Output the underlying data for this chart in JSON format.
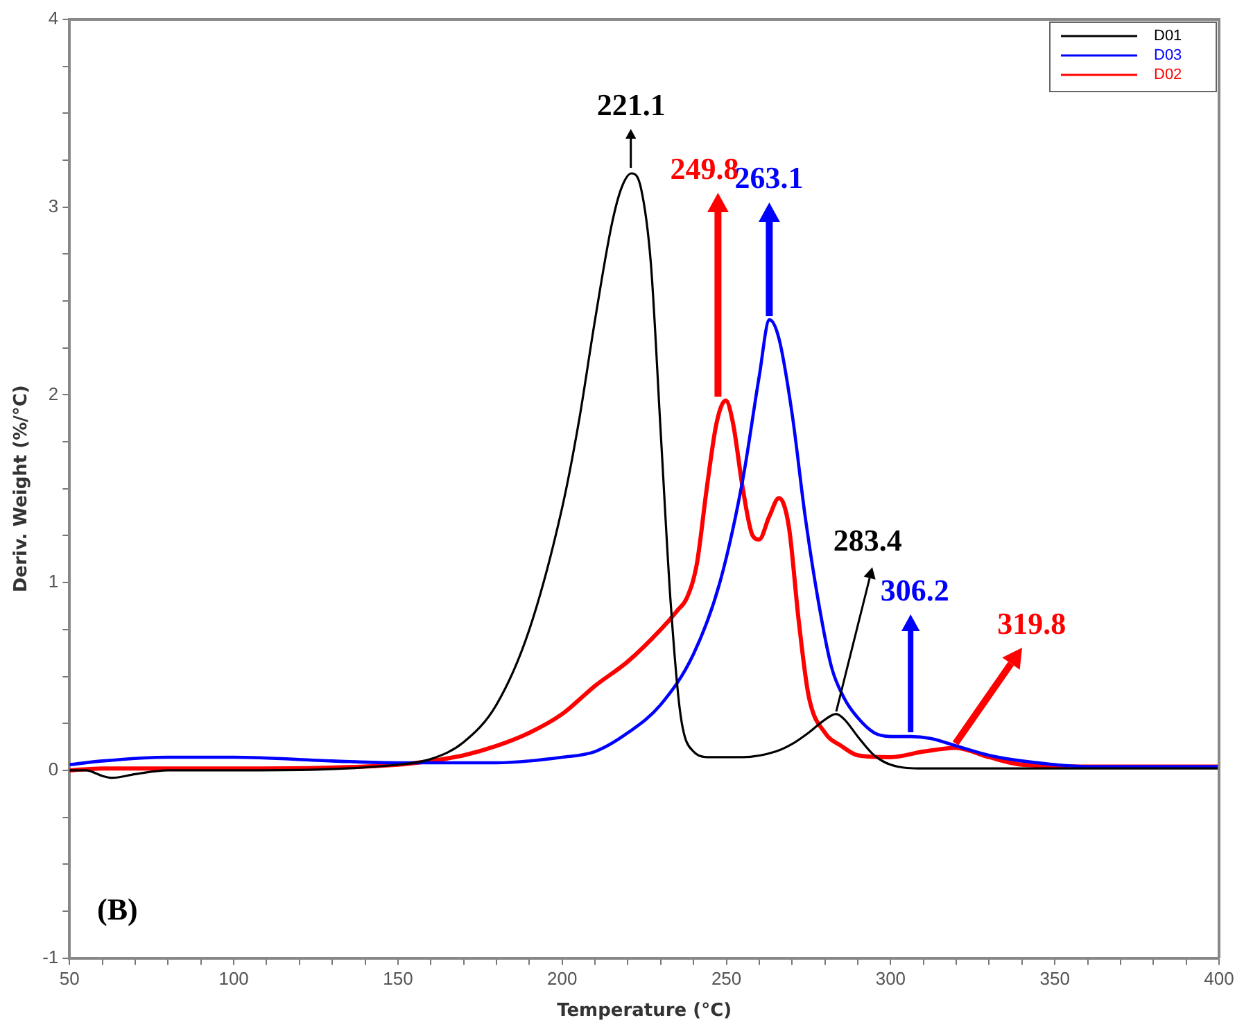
{
  "chart_data": {
    "type": "line",
    "xlabel": "Temperature (°C)",
    "ylabel": "Deriv. Weight (%/°C)",
    "xlim": [
      50,
      400
    ],
    "xticks": [
      50,
      {
        "value": 60,
        "label": null
      },
      {
        "value": 70,
        "label": null
      },
      {
        "value": 80,
        "label": null
      },
      {
        "value": 90,
        "label": null
      },
      100,
      {
        "value": 110,
        "label": null
      },
      {
        "value": 120,
        "label": null
      },
      {
        "value": 130,
        "label": null
      },
      {
        "value": 140,
        "label": null
      },
      150,
      {
        "value": 160,
        "label": null
      },
      {
        "value": 170,
        "label": null
      },
      {
        "value": 180,
        "label": null
      },
      {
        "value": 190,
        "label": null
      },
      200,
      {
        "value": 210,
        "label": null
      },
      {
        "value": 220,
        "label": null
      },
      {
        "value": 230,
        "label": null
      },
      {
        "value": 240,
        "label": null
      },
      250,
      {
        "value": 260,
        "label": null
      },
      {
        "value": 270,
        "label": null
      },
      {
        "value": 280,
        "label": null
      },
      {
        "value": 290,
        "label": null
      },
      300,
      {
        "value": 310,
        "label": null
      },
      {
        "value": 320,
        "label": null
      },
      {
        "value": 330,
        "label": null
      },
      {
        "value": 340,
        "label": null
      },
      350,
      {
        "value": 360,
        "label": null
      },
      {
        "value": 370,
        "label": null
      },
      {
        "value": 380,
        "label": null
      },
      {
        "value": 390,
        "label": null
      },
      400
    ],
    "ylim": [
      -1,
      4
    ],
    "yticks": [
      -1,
      {
        "value": -0.75,
        "label": null
      },
      {
        "value": -0.5,
        "label": null
      },
      {
        "value": -0.25,
        "label": null
      },
      0,
      {
        "value": 0.25,
        "label": null
      },
      {
        "value": 0.5,
        "label": null
      },
      {
        "value": 0.75,
        "label": null
      },
      1,
      {
        "value": 1.25,
        "label": null
      },
      {
        "value": 1.5,
        "label": null
      },
      {
        "value": 1.75,
        "label": null
      },
      2,
      {
        "value": 2.25,
        "label": null
      },
      {
        "value": 2.5,
        "label": null
      },
      {
        "value": 2.75,
        "label": null
      },
      3,
      {
        "value": 3.25,
        "label": null
      },
      {
        "value": 3.5,
        "label": null
      },
      {
        "value": 3.75,
        "label": null
      },
      4
    ],
    "grid": false,
    "legend": "top right",
    "marker": "none",
    "line_style": "solid",
    "series": [
      {
        "name": "D01",
        "color": "#000000",
        "x": [
          50,
          55,
          60,
          63,
          70,
          80,
          100,
          150,
          160,
          170,
          180,
          190,
          200,
          205,
          210,
          215,
          218,
          221.1,
          224,
          227,
          230,
          233,
          236,
          240,
          245,
          255,
          265,
          270,
          275,
          280,
          283.4,
          286,
          290,
          295,
          300,
          310,
          320,
          400
        ],
        "values": [
          0,
          0,
          -0.03,
          -0.04,
          -0.02,
          0,
          0,
          0.03,
          0.06,
          0.15,
          0.35,
          0.75,
          1.4,
          1.85,
          2.4,
          2.9,
          3.1,
          3.18,
          3.1,
          2.7,
          1.8,
          0.9,
          0.3,
          0.1,
          0.07,
          0.07,
          0.1,
          0.14,
          0.2,
          0.27,
          0.3,
          0.27,
          0.18,
          0.08,
          0.03,
          0.01,
          0.01,
          0.01
        ]
      },
      {
        "name": "D03",
        "color": "#0000ff",
        "x": [
          50,
          60,
          80,
          100,
          130,
          150,
          180,
          200,
          210,
          220,
          230,
          240,
          248,
          255,
          260,
          263.1,
          266,
          270,
          274,
          278,
          282,
          286,
          290,
          295,
          300,
          306.2,
          312,
          320,
          330,
          340,
          360,
          400
        ],
        "values": [
          0.03,
          0.05,
          0.07,
          0.07,
          0.05,
          0.04,
          0.04,
          0.07,
          0.1,
          0.2,
          0.35,
          0.62,
          1.0,
          1.55,
          2.1,
          2.4,
          2.3,
          1.9,
          1.35,
          0.9,
          0.55,
          0.38,
          0.28,
          0.2,
          0.18,
          0.18,
          0.17,
          0.13,
          0.08,
          0.05,
          0.02,
          0.02
        ]
      },
      {
        "name": "D02",
        "color": "#ff0000",
        "x": [
          50,
          60,
          100,
          150,
          160,
          170,
          180,
          190,
          200,
          210,
          220,
          230,
          235,
          238,
          241,
          244,
          247,
          249.8,
          252,
          255,
          258,
          260,
          263,
          266,
          269,
          272,
          275,
          280,
          285,
          290,
          300,
          310,
          319.8,
          330,
          340,
          360,
          400
        ],
        "values": [
          0,
          0.01,
          0.01,
          0.03,
          0.05,
          0.08,
          0.13,
          0.2,
          0.3,
          0.45,
          0.58,
          0.75,
          0.85,
          0.92,
          1.1,
          1.5,
          1.85,
          1.97,
          1.85,
          1.5,
          1.25,
          1.23,
          1.35,
          1.45,
          1.3,
          0.8,
          0.4,
          0.2,
          0.13,
          0.08,
          0.07,
          0.1,
          0.12,
          0.07,
          0.03,
          0.02,
          0.02
        ]
      }
    ],
    "annotations": [
      {
        "text": "221.1",
        "x": 221.1,
        "y": 3.18
      },
      {
        "text": "249.8",
        "x": 249.8,
        "y": 1.97
      },
      {
        "text": "263.1",
        "x": 263.1,
        "y": 2.4
      },
      {
        "text": "283.4",
        "x": 283.4,
        "y": 0.3
      },
      {
        "text": "306.2",
        "x": 306.2,
        "y": 0.18
      },
      {
        "text": "319.8",
        "x": 319.8,
        "y": 0.12
      },
      "(B)"
    ]
  }
}
